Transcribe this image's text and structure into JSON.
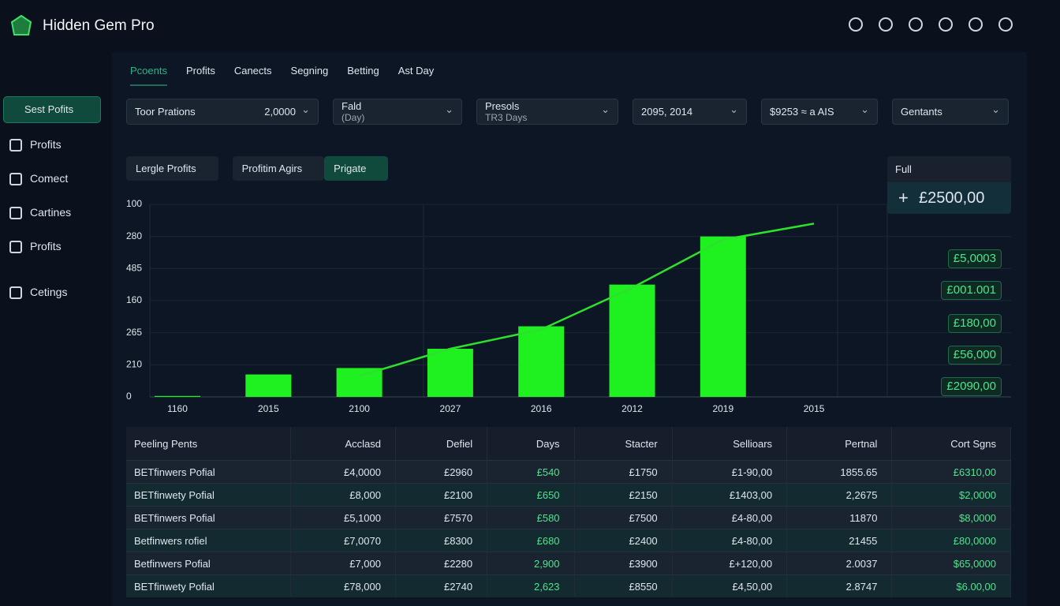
{
  "header": {
    "brand": "Hidden Gem Pro"
  },
  "tabs": [
    "Pcoents",
    "Profits",
    "Canects",
    "Segning",
    "Betting",
    "Ast Day"
  ],
  "sidebar": [
    "Sest Pofits",
    "Profits",
    "Comect",
    "Cartines",
    "Profits",
    "Cetings"
  ],
  "filters": [
    {
      "label": "Toor Prations",
      "value": "2,0000"
    },
    {
      "label": "Fald",
      "sub": "(Day)"
    },
    {
      "label": "Presols",
      "sub": "TR3 Days"
    },
    {
      "label": "2095, 2014"
    },
    {
      "label": "$9253 ≈ a AIS"
    },
    {
      "label": "Gentants"
    }
  ],
  "chart_controls": [
    "Lergle Profits",
    "Profitim Agirs",
    "Prigate"
  ],
  "side_panel": {
    "dropdown": "Full",
    "total": "£2500,00",
    "values": [
      "£5,0003",
      "£001.001",
      "£180,00",
      "£56,000",
      "£2090,00"
    ]
  },
  "chart_data": {
    "type": "bar",
    "categories": [
      "1160",
      "2015",
      "2100",
      "2027",
      "2016",
      "2012",
      "2019",
      "2015"
    ],
    "series": [
      {
        "type": "bar",
        "color": "#1ff01f",
        "values": [
          0.03,
          0.7,
          0.9,
          1.5,
          2.2,
          3.5,
          5.0,
          null
        ]
      },
      {
        "type": "line",
        "color": "#2ee02e",
        "values": [
          null,
          null,
          0.65,
          1.5,
          2.1,
          3.4,
          4.9,
          5.4
        ]
      }
    ],
    "ylim": [
      0,
      6
    ],
    "yticks": [
      {
        "value": 0,
        "label": "0"
      },
      {
        "value": 1,
        "label": "210"
      },
      {
        "value": 2,
        "label": "265"
      },
      {
        "value": 3,
        "label": "160"
      },
      {
        "value": 4,
        "label": "485"
      },
      {
        "value": 5,
        "label": "280"
      },
      {
        "value": 6,
        "label": "100"
      }
    ],
    "grid": true
  },
  "table": {
    "headers": [
      "Peeling Pents",
      "Acclasd",
      "Defiel",
      "Days",
      "Stacter",
      "Sellioars",
      "Pertnal",
      "Cort Sgns"
    ],
    "rows": [
      [
        "BETfinwers Pofial",
        "£4,0000",
        "£2960",
        "£540",
        "£1750",
        "£1-90,00",
        "1855.65",
        "£6310,00"
      ],
      [
        "BETfinwety Pofial",
        "£8,000",
        "£2100",
        "£650",
        "£2150",
        "£1403,00",
        "2,2675",
        "$2,0000"
      ],
      [
        "BETfinwers Pofial",
        "£5,1000",
        "£7570",
        "£580",
        "£7500",
        "£4-80,00",
        "11870",
        "$8,0000"
      ],
      [
        "Betfinwers rofiel",
        "£7,0070",
        "£8300",
        "£680",
        "£2400",
        "£4-80,00",
        "21455",
        "£80,0000"
      ],
      [
        "Betfinwers Pofial",
        "£7,000",
        "£2280",
        "2,900",
        "£3900",
        "£+120,00",
        "2.0037",
        "$65,0000"
      ],
      [
        "BETfinwety Pofial",
        "£78,000",
        "£2740",
        "2,623",
        "£8550",
        "£4,50,00",
        "2.8747",
        "$6.00,00"
      ]
    ]
  }
}
